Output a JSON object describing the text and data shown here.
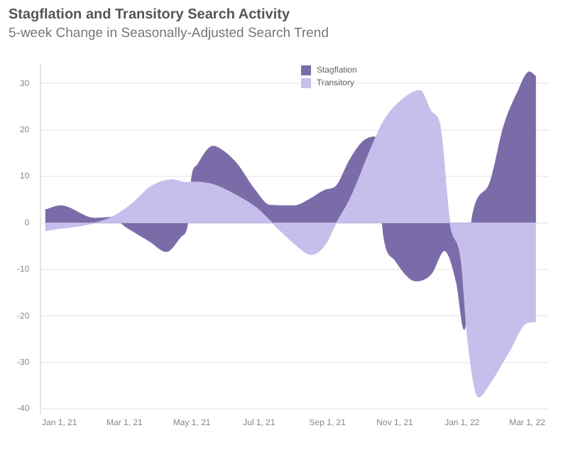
{
  "chart_data": {
    "type": "area",
    "title": "Stagflation and Transitory Search Activity",
    "subtitle": "5-week Change in Seasonally-Adjusted Search Trend",
    "series": [
      {
        "name": "Transitory",
        "color": "#c6bfec",
        "x": [
          "2020-12-19",
          "2021-01-02",
          "2021-01-21",
          "2021-02-02",
          "2021-02-17",
          "2021-03-07",
          "2021-03-24",
          "2021-04-13",
          "2021-04-26",
          "2021-05-02",
          "2021-05-20",
          "2021-06-10",
          "2021-06-30",
          "2021-07-13",
          "2021-08-02",
          "2021-08-17",
          "2021-08-29",
          "2021-09-09",
          "2021-09-21",
          "2021-10-13",
          "2021-10-22",
          "2021-11-05",
          "2021-11-24",
          "2021-12-04",
          "2021-12-12",
          "2021-12-21",
          "2021-12-31",
          "2022-01-06",
          "2022-01-16",
          "2022-01-25",
          "2022-02-12",
          "2022-03-01",
          "2022-03-09"
        ],
        "values": [
          -1.7,
          -1.2,
          -0.6,
          0,
          1.2,
          4,
          7.7,
          9.3,
          8.7,
          8.8,
          8.3,
          6,
          3,
          0,
          -4.5,
          -6.8,
          -5,
          0,
          5,
          17.5,
          22,
          26,
          28.5,
          24,
          21,
          0,
          -8,
          -25,
          -37.5,
          -35,
          -28,
          -21.5,
          -21.3
        ]
      },
      {
        "name": "Stagflation",
        "color": "#7b6ba8",
        "x": [
          "2020-12-19",
          "2021-01-02",
          "2021-02-02",
          "2021-02-17",
          "2021-03-03",
          "2021-03-24",
          "2021-04-08",
          "2021-04-21",
          "2021-04-27",
          "2021-05-01",
          "2021-05-06",
          "2021-05-20",
          "2021-05-24",
          "2021-06-10",
          "2021-06-26",
          "2021-07-11",
          "2021-08-02",
          "2021-08-15",
          "2021-08-29",
          "2021-09-09",
          "2021-09-21",
          "2021-10-03",
          "2021-10-14",
          "2021-10-22",
          "2021-11-01",
          "2021-11-20",
          "2021-12-04",
          "2021-12-16",
          "2021-12-27",
          "2022-01-03",
          "2022-01-10",
          "2022-01-25",
          "2022-02-08",
          "2022-02-20",
          "2022-03-03",
          "2022-03-09"
        ],
        "values": [
          2.8,
          3.7,
          1,
          1.2,
          -1,
          -4,
          -6.2,
          -3,
          -0.5,
          10,
          12.5,
          16.5,
          16.3,
          13,
          7.5,
          3.8,
          3.7,
          5,
          7,
          8,
          13.5,
          17.5,
          18.5,
          -3,
          -8,
          -12.5,
          -11,
          -6,
          -13,
          -23,
          1,
          8,
          21,
          28,
          32.5,
          31.5
        ]
      }
    ],
    "xlim": [
      "2020-12-15",
      "2022-03-20"
    ],
    "xticks": [
      {
        "value": "2021-01-01",
        "label": "Jan 1, 21"
      },
      {
        "value": "2021-03-01",
        "label": "Mar 1, 21"
      },
      {
        "value": "2021-05-01",
        "label": "May 1, 21"
      },
      {
        "value": "2021-07-01",
        "label": "Jul 1, 21"
      },
      {
        "value": "2021-09-01",
        "label": "Sep 1, 21"
      },
      {
        "value": "2021-11-01",
        "label": "Nov 1, 21"
      },
      {
        "value": "2022-01-01",
        "label": "Jan 1, 22"
      },
      {
        "value": "2022-03-01",
        "label": "Mar 1, 22"
      }
    ],
    "ylim": [
      -41,
      34
    ],
    "yticks": [
      -40,
      -30,
      -20,
      -10,
      0,
      10,
      20,
      30
    ],
    "grid": "y",
    "legend": "top"
  }
}
